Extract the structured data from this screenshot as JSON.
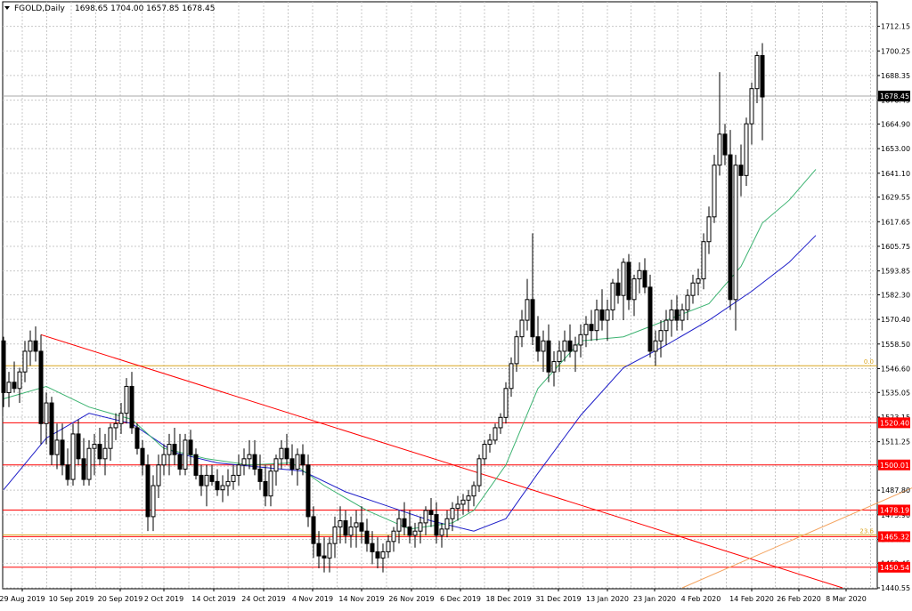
{
  "header": {
    "symbol": "FGOLD,Daily",
    "ohlc": "1698.65 1704.00 1657.85 1678.45"
  },
  "colors": {
    "grid": "#c8c8c8",
    "candle": "#000000",
    "ma_fast": "#3cb371",
    "ma_slow": "#1e1ec8",
    "level_red": "#ff0000",
    "trendline": "#ff0000",
    "fib": "#daa520",
    "fib_diag": "#f4a460",
    "price_line": "#a9a9a9"
  },
  "chart_data": {
    "type": "candlestick",
    "title": "FGOLD,Daily",
    "ylim": [
      1440.55,
      1718.0
    ],
    "y_ticks": [
      "1712.15",
      "1700.25",
      "1688.35",
      "1676.45",
      "1664.90",
      "1653.00",
      "1641.10",
      "1629.55",
      "1617.65",
      "1605.75",
      "1593.85",
      "1582.30",
      "1570.40",
      "1558.50",
      "1546.60",
      "1535.05",
      "1523.15",
      "1511.25",
      "1499.35",
      "1487.80",
      "1475.90",
      "1464.00",
      "1452.45",
      "1440.55"
    ],
    "x_ticks": [
      "29 Aug 2019",
      "10 Sep 2019",
      "20 Sep 2019",
      "2 Oct 2019",
      "14 Oct 2019",
      "24 Oct 2019",
      "4 Nov 2019",
      "14 Nov 2019",
      "26 Nov 2019",
      "6 Dec 2019",
      "18 Dec 2019",
      "31 Dec 2019",
      "13 Jan 2020",
      "23 Jan 2020",
      "4 Feb 2020",
      "14 Feb 2020",
      "26 Feb 2020",
      "8 Mar 2020"
    ],
    "horizontal_levels": [
      {
        "label": "1520.40",
        "value": 1520.4,
        "color": "#ff0000"
      },
      {
        "label": "1500.01",
        "value": 1500.01,
        "color": "#ff0000"
      },
      {
        "label": "1478.19",
        "value": 1478.19,
        "color": "#ff0000"
      },
      {
        "label": "1465.32",
        "value": 1465.32,
        "color": "#ff0000"
      },
      {
        "label": "1450.54",
        "value": 1450.54,
        "color": "#ff0000"
      }
    ],
    "fib_levels": [
      {
        "label": "0.0",
        "value": 1548.0
      },
      {
        "label": "23.6",
        "value": 1466.2
      }
    ],
    "current_price": {
      "label": "1678.45",
      "value": 1678.45
    },
    "trendline": {
      "from": {
        "bar": 7,
        "price": 1563.0
      },
      "to": {
        "bar": 157,
        "price": 1440.55
      }
    },
    "fib_diagonal": {
      "from": {
        "bar": 127,
        "price": 1440.55
      },
      "to": {
        "bar": 179,
        "price": 1499.0
      }
    },
    "candles": [
      [
        1560,
        1562,
        1528,
        1535
      ],
      [
        1535,
        1545,
        1528,
        1540
      ],
      [
        1540,
        1550,
        1535,
        1537
      ],
      [
        1537,
        1547,
        1530,
        1545
      ],
      [
        1545,
        1560,
        1540,
        1555
      ],
      [
        1555,
        1565,
        1548,
        1560
      ],
      [
        1560,
        1567,
        1550,
        1555
      ],
      [
        1555,
        1563,
        1510,
        1520
      ],
      [
        1520,
        1535,
        1510,
        1530
      ],
      [
        1530,
        1533,
        1500,
        1505
      ],
      [
        1505,
        1520,
        1498,
        1512
      ],
      [
        1512,
        1520,
        1495,
        1500
      ],
      [
        1500,
        1508,
        1490,
        1493
      ],
      [
        1493,
        1520,
        1490,
        1515
      ],
      [
        1515,
        1522,
        1500,
        1503
      ],
      [
        1503,
        1513,
        1490,
        1493
      ],
      [
        1493,
        1512,
        1490,
        1508
      ],
      [
        1508,
        1515,
        1495,
        1510
      ],
      [
        1510,
        1518,
        1500,
        1503
      ],
      [
        1503,
        1515,
        1495,
        1508
      ],
      [
        1508,
        1520,
        1502,
        1518
      ],
      [
        1518,
        1525,
        1512,
        1520
      ],
      [
        1520,
        1530,
        1515,
        1525
      ],
      [
        1525,
        1542,
        1520,
        1538
      ],
      [
        1538,
        1545,
        1515,
        1518
      ],
      [
        1518,
        1520,
        1505,
        1508
      ],
      [
        1508,
        1512,
        1495,
        1500
      ],
      [
        1500,
        1505,
        1468,
        1475
      ],
      [
        1475,
        1495,
        1468,
        1490
      ],
      [
        1490,
        1505,
        1484,
        1500
      ],
      [
        1500,
        1510,
        1495,
        1505
      ],
      [
        1505,
        1515,
        1495,
        1510
      ],
      [
        1510,
        1518,
        1500,
        1505
      ],
      [
        1505,
        1515,
        1495,
        1498
      ],
      [
        1498,
        1515,
        1495,
        1512
      ],
      [
        1512,
        1517,
        1500,
        1505
      ],
      [
        1505,
        1508,
        1493,
        1495
      ],
      [
        1495,
        1500,
        1485,
        1490
      ],
      [
        1490,
        1500,
        1480,
        1495
      ],
      [
        1495,
        1500,
        1490,
        1492
      ],
      [
        1492,
        1498,
        1485,
        1488
      ],
      [
        1488,
        1495,
        1482,
        1490
      ],
      [
        1490,
        1498,
        1485,
        1492
      ],
      [
        1492,
        1500,
        1488,
        1495
      ],
      [
        1495,
        1505,
        1490,
        1500
      ],
      [
        1500,
        1508,
        1495,
        1503
      ],
      [
        1503,
        1512,
        1498,
        1505
      ],
      [
        1505,
        1512,
        1495,
        1498
      ],
      [
        1498,
        1505,
        1488,
        1492
      ],
      [
        1492,
        1500,
        1480,
        1485
      ],
      [
        1485,
        1500,
        1480,
        1497
      ],
      [
        1497,
        1505,
        1490,
        1503
      ],
      [
        1503,
        1512,
        1498,
        1508
      ],
      [
        1508,
        1515,
        1500,
        1503
      ],
      [
        1503,
        1510,
        1495,
        1498
      ],
      [
        1498,
        1508,
        1490,
        1505
      ],
      [
        1505,
        1510,
        1495,
        1500
      ],
      [
        1500,
        1505,
        1470,
        1475
      ],
      [
        1475,
        1480,
        1455,
        1462
      ],
      [
        1462,
        1468,
        1450,
        1456
      ],
      [
        1456,
        1465,
        1448,
        1455
      ],
      [
        1455,
        1465,
        1448,
        1462
      ],
      [
        1462,
        1475,
        1455,
        1470
      ],
      [
        1470,
        1480,
        1462,
        1473
      ],
      [
        1473,
        1478,
        1462,
        1466
      ],
      [
        1466,
        1475,
        1460,
        1470
      ],
      [
        1470,
        1478,
        1460,
        1472
      ],
      [
        1472,
        1480,
        1462,
        1468
      ],
      [
        1468,
        1474,
        1458,
        1462
      ],
      [
        1462,
        1468,
        1452,
        1458
      ],
      [
        1458,
        1465,
        1450,
        1455
      ],
      [
        1455,
        1462,
        1448,
        1458
      ],
      [
        1458,
        1466,
        1455,
        1463
      ],
      [
        1463,
        1470,
        1458,
        1468
      ],
      [
        1468,
        1478,
        1462,
        1474
      ],
      [
        1474,
        1482,
        1466,
        1470
      ],
      [
        1470,
        1478,
        1462,
        1466
      ],
      [
        1466,
        1472,
        1460,
        1468
      ],
      [
        1468,
        1475,
        1462,
        1472
      ],
      [
        1472,
        1480,
        1466,
        1478
      ],
      [
        1478,
        1484,
        1470,
        1476
      ],
      [
        1476,
        1482,
        1462,
        1466
      ],
      [
        1466,
        1472,
        1460,
        1469
      ],
      [
        1469,
        1478,
        1465,
        1474
      ],
      [
        1474,
        1482,
        1468,
        1479
      ],
      [
        1479,
        1485,
        1473,
        1481
      ],
      [
        1481,
        1486,
        1476,
        1483
      ],
      [
        1483,
        1488,
        1477,
        1485
      ],
      [
        1485,
        1492,
        1480,
        1490
      ],
      [
        1490,
        1505,
        1487,
        1503
      ],
      [
        1503,
        1512,
        1500,
        1510
      ],
      [
        1510,
        1515,
        1506,
        1512
      ],
      [
        1512,
        1520,
        1510,
        1518
      ],
      [
        1518,
        1525,
        1515,
        1523
      ],
      [
        1523,
        1540,
        1520,
        1537
      ],
      [
        1537,
        1552,
        1533,
        1549
      ],
      [
        1549,
        1565,
        1545,
        1562
      ],
      [
        1562,
        1575,
        1557,
        1570
      ],
      [
        1570,
        1590,
        1565,
        1580
      ],
      [
        1580,
        1612,
        1558,
        1562
      ],
      [
        1562,
        1572,
        1550,
        1555
      ],
      [
        1555,
        1565,
        1545,
        1560
      ],
      [
        1560,
        1568,
        1540,
        1545
      ],
      [
        1545,
        1555,
        1538,
        1550
      ],
      [
        1550,
        1560,
        1545,
        1555
      ],
      [
        1555,
        1565,
        1550,
        1560
      ],
      [
        1560,
        1568,
        1552,
        1555
      ],
      [
        1555,
        1562,
        1545,
        1558
      ],
      [
        1558,
        1568,
        1552,
        1563
      ],
      [
        1563,
        1572,
        1557,
        1568
      ],
      [
        1568,
        1575,
        1560,
        1565
      ],
      [
        1565,
        1580,
        1560,
        1575
      ],
      [
        1575,
        1585,
        1565,
        1570
      ],
      [
        1570,
        1580,
        1560,
        1575
      ],
      [
        1575,
        1590,
        1570,
        1588
      ],
      [
        1588,
        1595,
        1578,
        1582
      ],
      [
        1582,
        1600,
        1570,
        1598
      ],
      [
        1598,
        1602,
        1575,
        1580
      ],
      [
        1580,
        1592,
        1572,
        1590
      ],
      [
        1590,
        1598,
        1583,
        1594
      ],
      [
        1594,
        1600,
        1583,
        1586
      ],
      [
        1586,
        1592,
        1552,
        1555
      ],
      [
        1555,
        1565,
        1548,
        1560
      ],
      [
        1560,
        1570,
        1552,
        1565
      ],
      [
        1565,
        1575,
        1558,
        1570
      ],
      [
        1570,
        1580,
        1562,
        1575
      ],
      [
        1575,
        1582,
        1565,
        1570
      ],
      [
        1570,
        1578,
        1565,
        1575
      ],
      [
        1575,
        1585,
        1570,
        1582
      ],
      [
        1582,
        1592,
        1578,
        1588
      ],
      [
        1588,
        1595,
        1582,
        1590
      ],
      [
        1590,
        1612,
        1585,
        1608
      ],
      [
        1608,
        1625,
        1602,
        1620
      ],
      [
        1620,
        1650,
        1617,
        1645
      ],
      [
        1645,
        1690,
        1640,
        1660
      ],
      [
        1660,
        1665,
        1645,
        1650
      ],
      [
        1650,
        1662,
        1575,
        1580
      ],
      [
        1580,
        1650,
        1565,
        1645
      ],
      [
        1645,
        1655,
        1630,
        1640
      ],
      [
        1640,
        1668,
        1635,
        1665
      ],
      [
        1665,
        1685,
        1655,
        1682
      ],
      [
        1682,
        1700,
        1675,
        1698
      ],
      [
        1698,
        1704,
        1657,
        1678
      ]
    ],
    "ma_fast": [
      [
        0,
        1532
      ],
      [
        8,
        1538
      ],
      [
        16,
        1528
      ],
      [
        24,
        1522
      ],
      [
        30,
        1508
      ],
      [
        38,
        1503
      ],
      [
        46,
        1500
      ],
      [
        54,
        1501
      ],
      [
        60,
        1490
      ],
      [
        68,
        1478
      ],
      [
        76,
        1469
      ],
      [
        84,
        1472
      ],
      [
        88,
        1478
      ],
      [
        94,
        1500
      ],
      [
        100,
        1537
      ],
      [
        108,
        1560
      ],
      [
        116,
        1562
      ],
      [
        124,
        1570
      ],
      [
        132,
        1578
      ],
      [
        138,
        1596
      ],
      [
        142,
        1617
      ],
      [
        147,
        1628
      ],
      [
        152,
        1643
      ]
    ],
    "ma_slow": [
      [
        0,
        1488
      ],
      [
        8,
        1513
      ],
      [
        16,
        1525
      ],
      [
        24,
        1520
      ],
      [
        32,
        1506
      ],
      [
        40,
        1501
      ],
      [
        48,
        1499
      ],
      [
        56,
        1497
      ],
      [
        64,
        1487
      ],
      [
        72,
        1480
      ],
      [
        80,
        1473
      ],
      [
        88,
        1468
      ],
      [
        94,
        1474
      ],
      [
        100,
        1496
      ],
      [
        108,
        1524
      ],
      [
        116,
        1547
      ],
      [
        124,
        1558
      ],
      [
        132,
        1570
      ],
      [
        140,
        1584
      ],
      [
        147,
        1598
      ],
      [
        152,
        1611
      ]
    ],
    "bar_spacing": 6
  }
}
